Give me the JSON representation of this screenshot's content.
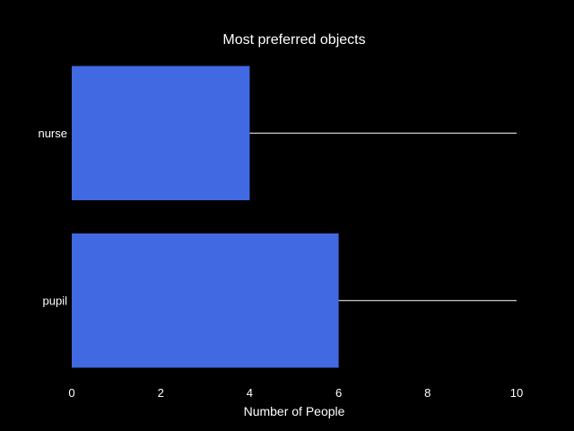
{
  "chart_data": {
    "type": "bar",
    "orientation": "horizontal",
    "title": "Most preferred objects",
    "xlabel": "Number of People",
    "ylabel": "",
    "categories": [
      "nurse",
      "pupil"
    ],
    "values": [
      4,
      6
    ],
    "xlim": [
      0,
      10
    ],
    "xticks": [
      "0",
      "2",
      "4",
      "6",
      "8",
      "10"
    ],
    "grid": false,
    "legend": "none",
    "colors": {
      "background": "#000000",
      "bar": "#4169e1",
      "text": "#ffffff",
      "reference_line": "#ffffff"
    }
  }
}
